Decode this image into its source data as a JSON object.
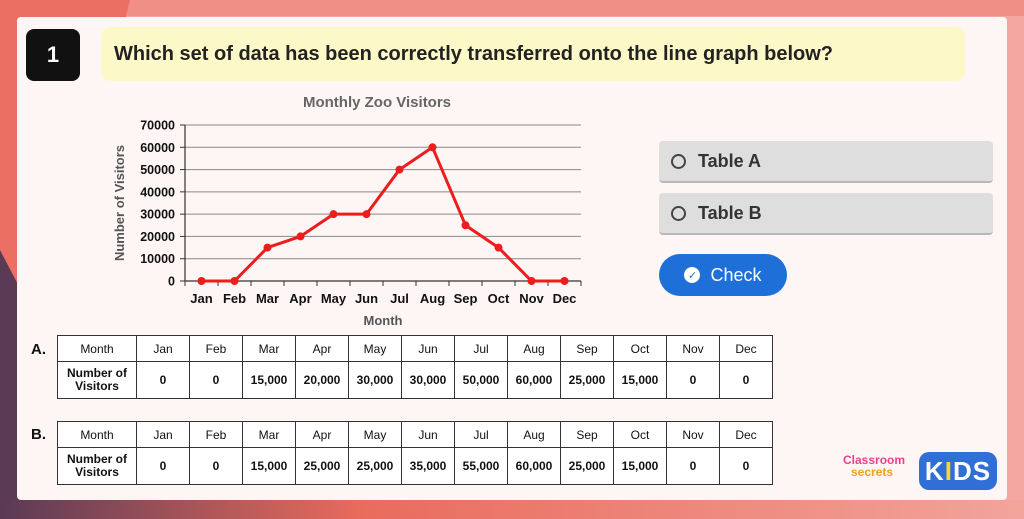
{
  "question": {
    "number": "1",
    "text": "Which set of data has been correctly transferred onto the line graph below?"
  },
  "options": [
    {
      "label": "Table A"
    },
    {
      "label": "Table B"
    }
  ],
  "check_button": {
    "label": "Check"
  },
  "chart_data": {
    "type": "line",
    "title": "Monthly Zoo Visitors",
    "xlabel": "Month",
    "ylabel": "Number of Visitors",
    "categories": [
      "Jan",
      "Feb",
      "Mar",
      "Apr",
      "May",
      "Jun",
      "Jul",
      "Aug",
      "Sep",
      "Oct",
      "Nov",
      "Dec"
    ],
    "values": [
      0,
      0,
      15000,
      20000,
      30000,
      30000,
      50000,
      60000,
      25000,
      15000,
      0,
      0
    ],
    "ylim": [
      0,
      70000
    ],
    "yticks": [
      0,
      10000,
      20000,
      30000,
      40000,
      50000,
      60000,
      70000
    ],
    "grid": true,
    "line_color": "#ee1c1c"
  },
  "tables": [
    {
      "label": "A.",
      "header_label": "Month",
      "row_label_line1": "Number of",
      "row_label_line2": "Visitors",
      "months": [
        "Jan",
        "Feb",
        "Mar",
        "Apr",
        "May",
        "Jun",
        "Jul",
        "Aug",
        "Sep",
        "Oct",
        "Nov",
        "Dec"
      ],
      "values": [
        "0",
        "0",
        "15,000",
        "20,000",
        "30,000",
        "30,000",
        "50,000",
        "60,000",
        "25,000",
        "15,000",
        "0",
        "0"
      ]
    },
    {
      "label": "B.",
      "header_label": "Month",
      "row_label_line1": "Number of",
      "row_label_line2": "Visitors",
      "months": [
        "Jan",
        "Feb",
        "Mar",
        "Apr",
        "May",
        "Jun",
        "Jul",
        "Aug",
        "Sep",
        "Oct",
        "Nov",
        "Dec"
      ],
      "values": [
        "0",
        "0",
        "15,000",
        "25,000",
        "25,000",
        "35,000",
        "55,000",
        "60,000",
        "25,000",
        "15,000",
        "0",
        "0"
      ]
    }
  ],
  "logo": {
    "line1": "Classroom",
    "line2": "secrets",
    "kids_k": "K",
    "kids_i": "I",
    "kids_ds": "DS"
  }
}
